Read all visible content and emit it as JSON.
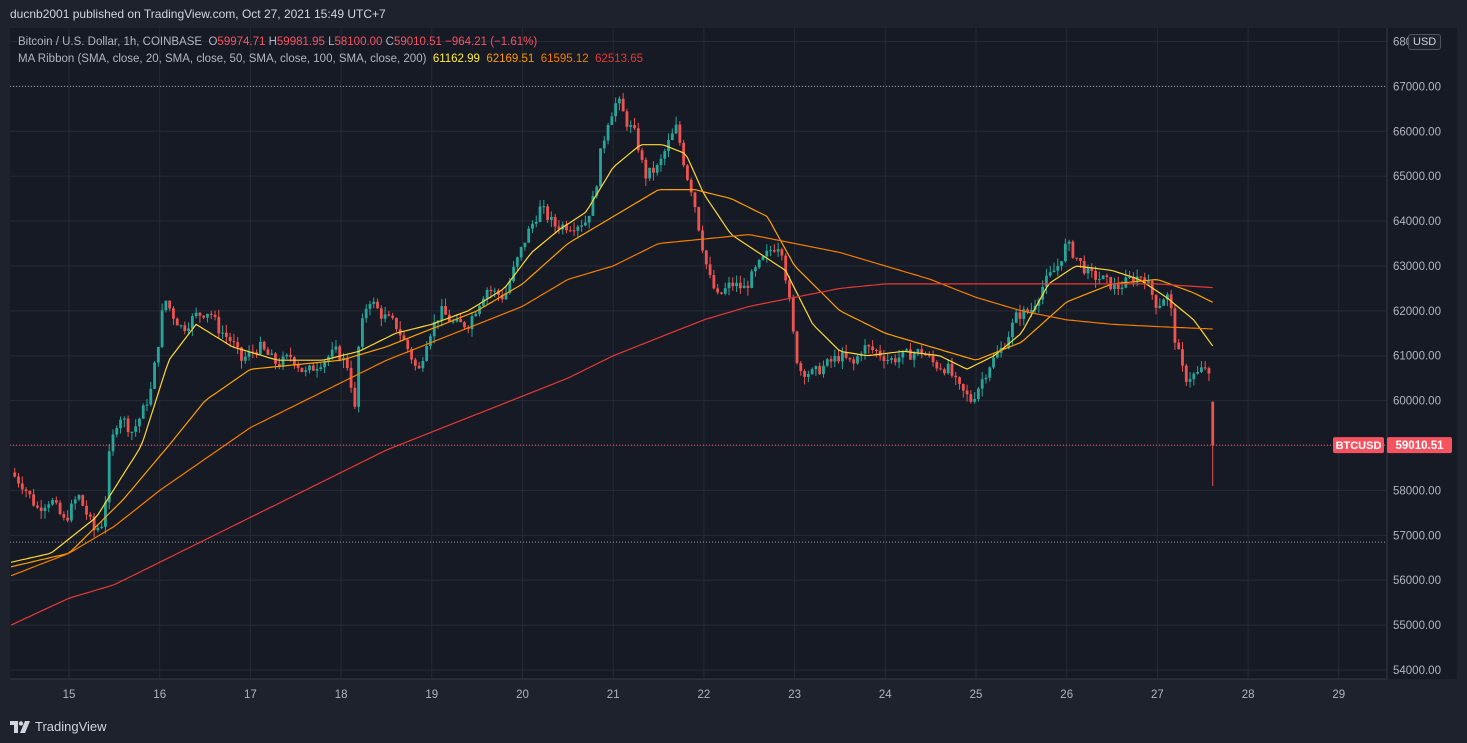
{
  "header": {
    "publisher": "ducnb2001 published on TradingView.com, Oct 27, 2021 15:49 UTC+7"
  },
  "legend": {
    "symbol": "Bitcoin / U.S. Dollar, 1h, COINBASE",
    "o_label": "O",
    "o": "59974.71",
    "h_label": "H",
    "h": "59981.95",
    "l_label": "L",
    "l": "58100.00",
    "c_label": "C",
    "c": "59010.51",
    "change": "−964.21 (−1.61%)",
    "ma_name": "MA Ribbon (SMA, close, 20, SMA, close, 50, SMA, close, 100, SMA, close, 200)",
    "ma20": "61162.99",
    "ma50": "62169.51",
    "ma100": "61595.12",
    "ma200": "62513.65"
  },
  "currency_button": "USD",
  "brand": {
    "name": "TradingView"
  },
  "colors": {
    "up": "#26a69a",
    "down": "#ef5350",
    "ma20": "#fdd835",
    "ma50": "#ffa000",
    "ma100": "#f57c00",
    "ma200": "#e53935",
    "price_label": "#f7525f"
  },
  "chart_data": {
    "type": "candlestick",
    "title": "Bitcoin / U.S. Dollar, 1h, COINBASE",
    "ylim": [
      53800,
      68300
    ],
    "y_ticks": [
      "54000.00",
      "55000.00",
      "56000.00",
      "57000.00",
      "58000.00",
      "59000.00",
      "60000.00",
      "61000.00",
      "62000.00",
      "63000.00",
      "64000.00",
      "65000.00",
      "66000.00",
      "67000.00",
      "68000.00"
    ],
    "x_ticks": [
      "15",
      "16",
      "17",
      "18",
      "19",
      "20",
      "21",
      "22",
      "23",
      "24",
      "25",
      "26",
      "27",
      "28",
      "29"
    ],
    "x_tick_day_index": [
      0,
      1,
      2,
      3,
      4,
      5,
      6,
      7,
      8,
      9,
      10,
      11,
      12,
      13,
      14
    ],
    "x_start_day_offset": -0.65,
    "last_price": {
      "label": "BTCUSD",
      "value": 59010.51
    },
    "horizontal_lines": [
      67000,
      56850
    ],
    "close_series_hourly_anchors": [
      [
        -0.64,
        58400
      ],
      [
        -0.5,
        58100
      ],
      [
        -0.35,
        57600
      ],
      [
        -0.2,
        57800
      ],
      [
        -0.05,
        57300
      ],
      [
        0.1,
        57900
      ],
      [
        0.28,
        57100
      ],
      [
        0.38,
        57300
      ],
      [
        0.45,
        58900
      ],
      [
        0.55,
        59700
      ],
      [
        0.7,
        59300
      ],
      [
        0.8,
        59700
      ],
      [
        0.9,
        60200
      ],
      [
        1.0,
        61500
      ],
      [
        1.05,
        62300
      ],
      [
        1.15,
        61900
      ],
      [
        1.25,
        61600
      ],
      [
        1.4,
        61900
      ],
      [
        1.55,
        62000
      ],
      [
        1.65,
        61600
      ],
      [
        1.8,
        61300
      ],
      [
        1.9,
        60900
      ],
      [
        2.1,
        61200
      ],
      [
        2.3,
        60800
      ],
      [
        2.45,
        61000
      ],
      [
        2.6,
        60600
      ],
      [
        2.8,
        60900
      ],
      [
        2.95,
        61100
      ],
      [
        3.1,
        60700
      ],
      [
        3.14,
        59400
      ],
      [
        3.2,
        61400
      ],
      [
        3.3,
        62300
      ],
      [
        3.45,
        61900
      ],
      [
        3.6,
        61700
      ],
      [
        3.75,
        61100
      ],
      [
        3.85,
        60600
      ],
      [
        3.95,
        61400
      ],
      [
        4.1,
        62000
      ],
      [
        4.25,
        61700
      ],
      [
        4.4,
        61700
      ],
      [
        4.5,
        62100
      ],
      [
        4.6,
        62500
      ],
      [
        4.7,
        62400
      ],
      [
        4.8,
        62300
      ],
      [
        4.9,
        62900
      ],
      [
        5.05,
        63700
      ],
      [
        5.2,
        64300
      ],
      [
        5.35,
        63900
      ],
      [
        5.55,
        63900
      ],
      [
        5.7,
        64000
      ],
      [
        5.8,
        64600
      ],
      [
        5.85,
        65400
      ],
      [
        5.95,
        66300
      ],
      [
        6.05,
        66700
      ],
      [
        6.15,
        66200
      ],
      [
        6.25,
        65900
      ],
      [
        6.35,
        65000
      ],
      [
        6.5,
        65200
      ],
      [
        6.6,
        65700
      ],
      [
        6.7,
        66100
      ],
      [
        6.8,
        65100
      ],
      [
        6.88,
        64600
      ],
      [
        6.95,
        63800
      ],
      [
        7.05,
        62800
      ],
      [
        7.15,
        62300
      ],
      [
        7.3,
        62600
      ],
      [
        7.45,
        62500
      ],
      [
        7.6,
        63000
      ],
      [
        7.75,
        63400
      ],
      [
        7.85,
        63500
      ],
      [
        7.95,
        62100
      ],
      [
        8.0,
        61200
      ],
      [
        8.05,
        60700
      ],
      [
        8.2,
        60600
      ],
      [
        8.35,
        60800
      ],
      [
        8.5,
        61000
      ],
      [
        8.65,
        60800
      ],
      [
        8.75,
        61200
      ],
      [
        8.9,
        61100
      ],
      [
        9.05,
        60900
      ],
      [
        9.2,
        61000
      ],
      [
        9.4,
        61100
      ],
      [
        9.55,
        60800
      ],
      [
        9.7,
        60700
      ],
      [
        9.8,
        60300
      ],
      [
        9.95,
        60000
      ],
      [
        10.05,
        60400
      ],
      [
        10.15,
        60800
      ],
      [
        10.3,
        61200
      ],
      [
        10.45,
        61900
      ],
      [
        10.6,
        62000
      ],
      [
        10.75,
        62600
      ],
      [
        10.9,
        63000
      ],
      [
        11.0,
        63500
      ],
      [
        11.1,
        63200
      ],
      [
        11.25,
        62800
      ],
      [
        11.4,
        62700
      ],
      [
        11.55,
        62500
      ],
      [
        11.7,
        62700
      ],
      [
        11.85,
        62800
      ],
      [
        12.0,
        62100
      ],
      [
        12.1,
        62400
      ],
      [
        12.15,
        62000
      ],
      [
        12.2,
        61300
      ],
      [
        12.3,
        60500
      ],
      [
        12.45,
        60600
      ],
      [
        12.55,
        60800
      ],
      [
        12.6,
        59975
      ],
      [
        12.63,
        59010
      ]
    ],
    "series": [
      {
        "name": "MA 20",
        "values": [
          [
            -0.64,
            56400
          ],
          [
            -0.2,
            56600
          ],
          [
            0.3,
            57400
          ],
          [
            0.8,
            59000
          ],
          [
            1.1,
            60900
          ],
          [
            1.4,
            61700
          ],
          [
            1.8,
            61200
          ],
          [
            2.3,
            60900
          ],
          [
            2.8,
            60900
          ],
          [
            3.2,
            61100
          ],
          [
            3.6,
            61500
          ],
          [
            4.0,
            61700
          ],
          [
            4.4,
            62000
          ],
          [
            4.8,
            62500
          ],
          [
            5.1,
            63300
          ],
          [
            5.4,
            63800
          ],
          [
            5.7,
            64200
          ],
          [
            6.0,
            65200
          ],
          [
            6.3,
            65700
          ],
          [
            6.55,
            65700
          ],
          [
            6.8,
            65500
          ],
          [
            7.0,
            64600
          ],
          [
            7.3,
            63700
          ],
          [
            7.6,
            63300
          ],
          [
            7.9,
            62900
          ],
          [
            8.2,
            61700
          ],
          [
            8.5,
            61100
          ],
          [
            8.8,
            61000
          ],
          [
            9.2,
            61100
          ],
          [
            9.6,
            61000
          ],
          [
            9.9,
            60700
          ],
          [
            10.2,
            61000
          ],
          [
            10.5,
            61500
          ],
          [
            10.8,
            62600
          ],
          [
            11.1,
            63000
          ],
          [
            11.5,
            62900
          ],
          [
            11.8,
            62700
          ],
          [
            12.1,
            62300
          ],
          [
            12.4,
            61800
          ],
          [
            12.63,
            61163
          ]
        ]
      },
      {
        "name": "MA 50",
        "values": [
          [
            -0.64,
            56300
          ],
          [
            0.0,
            56600
          ],
          [
            0.6,
            57800
          ],
          [
            1.1,
            59000
          ],
          [
            1.5,
            60000
          ],
          [
            2.0,
            60700
          ],
          [
            2.5,
            60800
          ],
          [
            3.0,
            60900
          ],
          [
            3.5,
            61200
          ],
          [
            4.0,
            61600
          ],
          [
            4.5,
            62000
          ],
          [
            5.0,
            62600
          ],
          [
            5.5,
            63500
          ],
          [
            6.0,
            64100
          ],
          [
            6.5,
            64700
          ],
          [
            6.9,
            64700
          ],
          [
            7.3,
            64500
          ],
          [
            7.7,
            64100
          ],
          [
            8.0,
            63000
          ],
          [
            8.5,
            62000
          ],
          [
            9.0,
            61500
          ],
          [
            9.5,
            61200
          ],
          [
            10.0,
            60900
          ],
          [
            10.5,
            61300
          ],
          [
            11.0,
            62200
          ],
          [
            11.5,
            62600
          ],
          [
            12.0,
            62700
          ],
          [
            12.4,
            62400
          ],
          [
            12.63,
            62170
          ]
        ]
      },
      {
        "name": "MA 100",
        "values": [
          [
            -0.64,
            56100
          ],
          [
            0.0,
            56600
          ],
          [
            0.5,
            57200
          ],
          [
            1.0,
            58000
          ],
          [
            1.5,
            58700
          ],
          [
            2.0,
            59400
          ],
          [
            2.5,
            59900
          ],
          [
            3.0,
            60400
          ],
          [
            3.5,
            60900
          ],
          [
            4.0,
            61300
          ],
          [
            4.5,
            61700
          ],
          [
            5.0,
            62100
          ],
          [
            5.5,
            62700
          ],
          [
            6.0,
            63000
          ],
          [
            6.5,
            63500
          ],
          [
            7.0,
            63600
          ],
          [
            7.5,
            63700
          ],
          [
            8.0,
            63500
          ],
          [
            8.5,
            63300
          ],
          [
            9.0,
            63000
          ],
          [
            9.5,
            62700
          ],
          [
            10.0,
            62300
          ],
          [
            10.5,
            62000
          ],
          [
            11.0,
            61800
          ],
          [
            11.5,
            61700
          ],
          [
            12.0,
            61650
          ],
          [
            12.63,
            61595
          ]
        ]
      },
      {
        "name": "MA 200",
        "values": [
          [
            -0.64,
            55000
          ],
          [
            0.0,
            55600
          ],
          [
            0.5,
            55900
          ],
          [
            1.0,
            56400
          ],
          [
            1.5,
            56900
          ],
          [
            2.0,
            57400
          ],
          [
            2.5,
            57900
          ],
          [
            3.0,
            58400
          ],
          [
            3.5,
            58900
          ],
          [
            4.0,
            59300
          ],
          [
            4.5,
            59700
          ],
          [
            5.0,
            60100
          ],
          [
            5.5,
            60500
          ],
          [
            6.0,
            61000
          ],
          [
            6.5,
            61400
          ],
          [
            7.0,
            61800
          ],
          [
            7.5,
            62100
          ],
          [
            8.0,
            62300
          ],
          [
            8.5,
            62500
          ],
          [
            9.0,
            62600
          ],
          [
            9.5,
            62600
          ],
          [
            10.0,
            62600
          ],
          [
            10.5,
            62600
          ],
          [
            11.0,
            62600
          ],
          [
            11.5,
            62600
          ],
          [
            12.0,
            62600
          ],
          [
            12.63,
            62514
          ]
        ]
      }
    ]
  }
}
